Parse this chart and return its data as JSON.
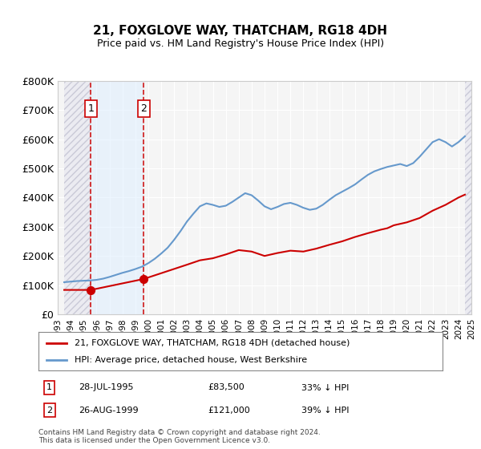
{
  "title": "21, FOXGLOVE WAY, THATCHAM, RG18 4DH",
  "subtitle": "Price paid vs. HM Land Registry's House Price Index (HPI)",
  "xlabel": "",
  "ylabel": "",
  "ylim": [
    0,
    800000
  ],
  "yticks": [
    0,
    100000,
    200000,
    300000,
    400000,
    500000,
    600000,
    700000,
    800000
  ],
  "ytick_labels": [
    "£0",
    "£100K",
    "£200K",
    "£300K",
    "£400K",
    "£500K",
    "£600K",
    "£700K",
    "£800K"
  ],
  "xmin": 1993.5,
  "xmax": 2025.0,
  "purchase1_date": 1995.57,
  "purchase1_price": 83500,
  "purchase1_label": "1",
  "purchase1_text": "28-JUL-1995",
  "purchase1_amount": "£83,500",
  "purchase1_hpi": "33% ↓ HPI",
  "purchase2_date": 1999.65,
  "purchase2_price": 121000,
  "purchase2_label": "2",
  "purchase2_text": "26-AUG-1999",
  "purchase2_amount": "£121,000",
  "purchase2_hpi": "39% ↓ HPI",
  "hpi_color": "#6699cc",
  "price_color": "#cc0000",
  "vline_color": "#cc0000",
  "hatch_color": "#cccccc",
  "bg_color": "#ffffff",
  "plot_bg_color": "#f5f5f5",
  "legend_label_price": "21, FOXGLOVE WAY, THATCHAM, RG18 4DH (detached house)",
  "legend_label_hpi": "HPI: Average price, detached house, West Berkshire",
  "footnote": "Contains HM Land Registry data © Crown copyright and database right 2024.\nThis data is licensed under the Open Government Licence v3.0.",
  "hpi_years": [
    1993.5,
    1994,
    1994.5,
    1995,
    1995.5,
    1996,
    1996.5,
    1997,
    1997.5,
    1998,
    1998.5,
    1999,
    1999.5,
    2000,
    2000.5,
    2001,
    2001.5,
    2002,
    2002.5,
    2003,
    2003.5,
    2004,
    2004.5,
    2005,
    2005.5,
    2006,
    2006.5,
    2007,
    2007.5,
    2008,
    2008.5,
    2009,
    2009.5,
    2010,
    2010.5,
    2011,
    2011.5,
    2012,
    2012.5,
    2013,
    2013.5,
    2014,
    2014.5,
    2015,
    2015.5,
    2016,
    2016.5,
    2017,
    2017.5,
    2018,
    2018.5,
    2019,
    2019.5,
    2020,
    2020.5,
    2021,
    2021.5,
    2022,
    2022.5,
    2023,
    2023.5,
    2024,
    2024.5
  ],
  "hpi_values": [
    110000,
    112000,
    114000,
    115000,
    116000,
    118000,
    122000,
    128000,
    135000,
    142000,
    148000,
    155000,
    163000,
    175000,
    190000,
    208000,
    228000,
    255000,
    285000,
    318000,
    345000,
    370000,
    380000,
    375000,
    368000,
    372000,
    385000,
    400000,
    415000,
    408000,
    390000,
    370000,
    360000,
    368000,
    378000,
    382000,
    375000,
    365000,
    358000,
    362000,
    375000,
    392000,
    408000,
    420000,
    432000,
    445000,
    462000,
    478000,
    490000,
    498000,
    505000,
    510000,
    515000,
    508000,
    518000,
    540000,
    565000,
    590000,
    600000,
    590000,
    575000,
    590000,
    610000
  ],
  "price_years": [
    1993.5,
    1995.57,
    1995.57,
    1999.65,
    1999.65,
    2003,
    2004,
    2005,
    2006,
    2007,
    2008,
    2009,
    2010,
    2011,
    2012,
    2013,
    2014,
    2015,
    2016,
    2017,
    2018,
    2018.5,
    2019,
    2020,
    2021,
    2022,
    2023,
    2024,
    2024.5
  ],
  "price_values": [
    83500,
    83500,
    83500,
    121000,
    121000,
    170000,
    185000,
    192000,
    205000,
    220000,
    215000,
    200000,
    210000,
    218000,
    215000,
    225000,
    238000,
    250000,
    265000,
    278000,
    290000,
    295000,
    305000,
    315000,
    330000,
    355000,
    375000,
    400000,
    410000
  ]
}
